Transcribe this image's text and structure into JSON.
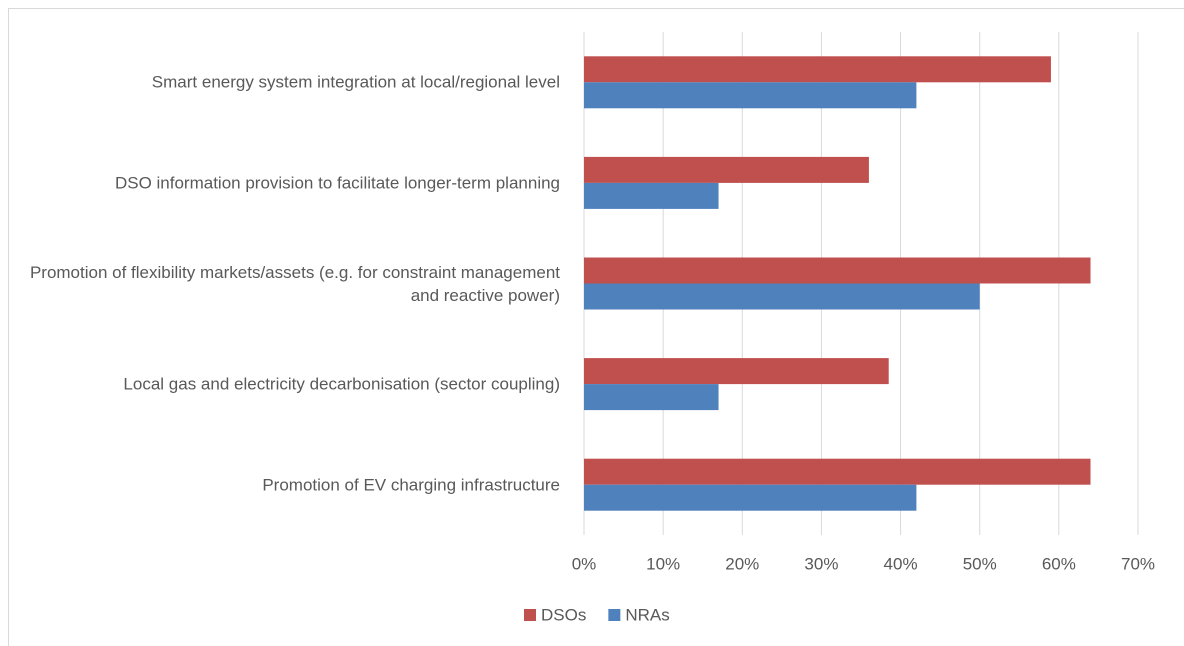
{
  "chart_data": {
    "type": "bar",
    "orientation": "horizontal",
    "categories": [
      "Smart energy system integration at local/regional level",
      "DSO information provision to facilitate longer-term planning",
      "Promotion of flexibility markets/assets (e.g. for constraint management and reactive power)",
      "Local gas and electricity decarbonisation (sector coupling)",
      "Promotion of EV charging infrastructure"
    ],
    "series": [
      {
        "name": "DSOs",
        "color": "#c0504d",
        "values": [
          59,
          36,
          64,
          38.5,
          64
        ]
      },
      {
        "name": "NRAs",
        "color": "#4f81bd",
        "values": [
          42,
          17,
          50,
          17,
          42
        ]
      }
    ],
    "xlim": [
      0,
      70
    ],
    "xticks": [
      {
        "value": 0,
        "label": "0%"
      },
      {
        "value": 10,
        "label": "10%"
      },
      {
        "value": 20,
        "label": "20%"
      },
      {
        "value": 30,
        "label": "30%"
      },
      {
        "value": 40,
        "label": "40%"
      },
      {
        "value": 50,
        "label": "50%"
      },
      {
        "value": 60,
        "label": "60%"
      },
      {
        "value": 70,
        "label": "70%"
      }
    ],
    "grid": true,
    "legend": "bottom"
  }
}
